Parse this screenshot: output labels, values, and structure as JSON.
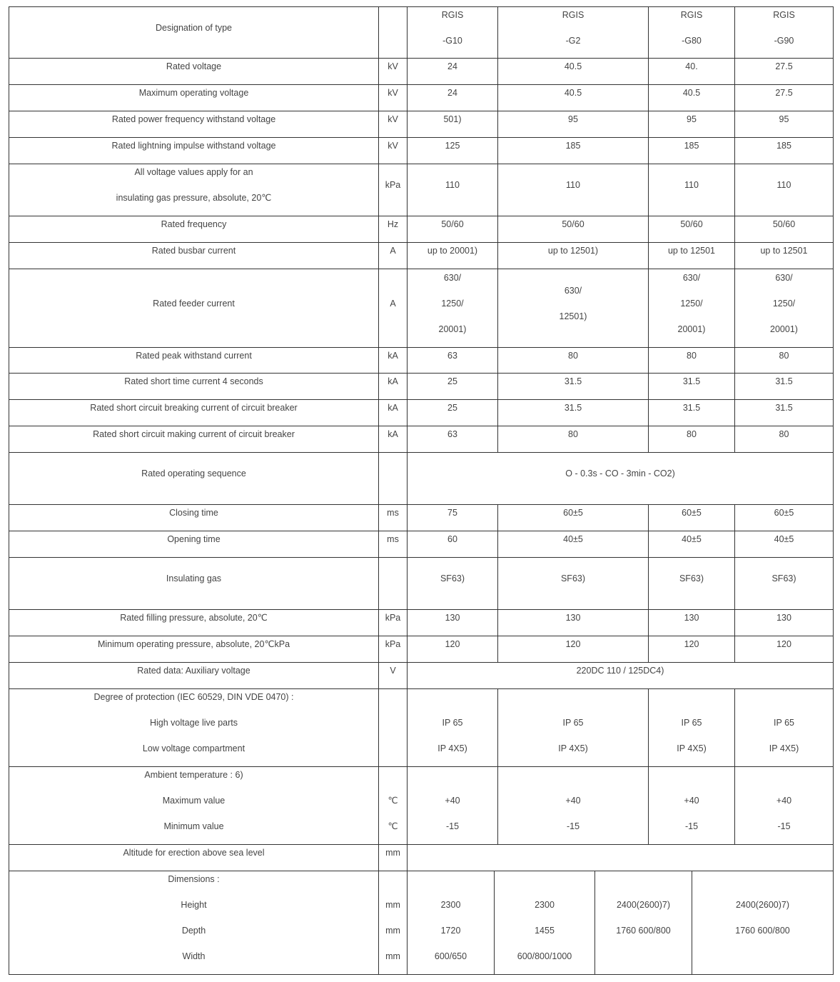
{
  "rows": [
    {
      "kind": "normal",
      "label": [
        "Designation of type"
      ],
      "unit": [
        ""
      ],
      "values": [
        [
          "RGIS",
          "-G10"
        ],
        [
          "RGIS",
          "-G2"
        ],
        [
          "RGIS",
          "-G80"
        ],
        [
          "RGIS",
          "-G90"
        ]
      ]
    },
    {
      "kind": "normal",
      "label": [
        "Rated voltage"
      ],
      "unit": [
        "kV"
      ],
      "values": [
        [
          "24"
        ],
        [
          "40.5"
        ],
        [
          "40."
        ],
        [
          "27.5"
        ]
      ]
    },
    {
      "kind": "normal",
      "label": [
        "Maximum operating voltage"
      ],
      "unit": [
        "kV"
      ],
      "values": [
        [
          "24"
        ],
        [
          "40.5"
        ],
        [
          "40.5"
        ],
        [
          "27.5"
        ]
      ]
    },
    {
      "kind": "normal",
      "label": [
        "Rated power frequency withstand voltage"
      ],
      "unit": [
        "kV"
      ],
      "values": [
        [
          "501)"
        ],
        [
          "95"
        ],
        [
          "95"
        ],
        [
          "95"
        ]
      ]
    },
    {
      "kind": "normal",
      "label": [
        "Rated lightning impulse withstand voltage"
      ],
      "unit": [
        "kV"
      ],
      "values": [
        [
          "125"
        ],
        [
          "185"
        ],
        [
          "185"
        ],
        [
          "185"
        ]
      ]
    },
    {
      "kind": "normal",
      "label": [
        "All voltage values apply for an",
        "insulating gas pressure, absolute, 20℃"
      ],
      "unit": [
        "kPa"
      ],
      "values": [
        [
          "110"
        ],
        [
          "110"
        ],
        [
          "110"
        ],
        [
          "110"
        ]
      ]
    },
    {
      "kind": "normal",
      "label": [
        "Rated frequency"
      ],
      "unit": [
        "Hz"
      ],
      "values": [
        [
          "50/60"
        ],
        [
          "50/60"
        ],
        [
          "50/60"
        ],
        [
          "50/60"
        ]
      ]
    },
    {
      "kind": "normal",
      "label": [
        "Rated busbar current"
      ],
      "unit": [
        "A"
      ],
      "values": [
        [
          "up to 20001)"
        ],
        [
          "up to 12501)"
        ],
        [
          "up to 12501"
        ],
        [
          "up to 12501"
        ]
      ]
    },
    {
      "kind": "normal",
      "label": [
        "Rated feeder current"
      ],
      "unit": [
        "A"
      ],
      "values": [
        [
          "630/",
          "1250/",
          "20001)"
        ],
        [
          "630/",
          "12501)"
        ],
        [
          "630/",
          "1250/",
          "20001)"
        ],
        [
          "630/",
          "1250/",
          "20001)"
        ]
      ]
    },
    {
      "kind": "normal",
      "label": [
        "Rated peak withstand current"
      ],
      "unit": [
        "kA"
      ],
      "values": [
        [
          "63"
        ],
        [
          "80"
        ],
        [
          "80"
        ],
        [
          "80"
        ]
      ]
    },
    {
      "kind": "normal",
      "label": [
        "Rated short time current 4 seconds"
      ],
      "unit": [
        "kA"
      ],
      "values": [
        [
          "25"
        ],
        [
          "31.5"
        ],
        [
          "31.5"
        ],
        [
          "31.5"
        ]
      ]
    },
    {
      "kind": "normal",
      "label": [
        "Rated short circuit breaking current of circuit breaker"
      ],
      "unit": [
        "kA"
      ],
      "values": [
        [
          "25"
        ],
        [
          "31.5"
        ],
        [
          "31.5"
        ],
        [
          "31.5"
        ]
      ]
    },
    {
      "kind": "normal",
      "label": [
        "Rated short circuit making current of circuit breaker"
      ],
      "unit": [
        "kA"
      ],
      "values": [
        [
          "63"
        ],
        [
          "80"
        ],
        [
          "80"
        ],
        [
          "80"
        ]
      ]
    },
    {
      "kind": "span",
      "label": [
        "Rated operating sequence"
      ],
      "unit": [
        ""
      ],
      "values": [
        [
          "O - 0.3s - CO - 3min - CO2)"
        ]
      ]
    },
    {
      "kind": "normal",
      "label": [
        "Closing time"
      ],
      "unit": [
        "ms"
      ],
      "values": [
        [
          "75"
        ],
        [
          "60±5"
        ],
        [
          "60±5"
        ],
        [
          "60±5"
        ]
      ]
    },
    {
      "kind": "normal",
      "label": [
        "Opening time"
      ],
      "unit": [
        "ms"
      ],
      "values": [
        [
          "60"
        ],
        [
          "40±5"
        ],
        [
          "40±5"
        ],
        [
          "40±5"
        ]
      ]
    },
    {
      "kind": "normal",
      "label": [
        "Insulating gas"
      ],
      "unit": [
        ""
      ],
      "values": [
        [
          "SF63)"
        ],
        [
          "SF63)"
        ],
        [
          "SF63)"
        ],
        [
          "SF63)"
        ]
      ]
    },
    {
      "kind": "normal",
      "label": [
        "Rated filling pressure, absolute, 20℃"
      ],
      "unit": [
        "kPa"
      ],
      "values": [
        [
          "130"
        ],
        [
          "130"
        ],
        [
          "130"
        ],
        [
          "130"
        ]
      ]
    },
    {
      "kind": "normal",
      "label": [
        "Minimum operating pressure, absolute, 20℃kPa"
      ],
      "unit": [
        "kPa"
      ],
      "values": [
        [
          "120"
        ],
        [
          "120"
        ],
        [
          "120"
        ],
        [
          "120"
        ]
      ]
    },
    {
      "kind": "span",
      "label": [
        "Rated data: Auxiliary voltage"
      ],
      "unit": [
        "V"
      ],
      "values": [
        [
          "220DC 110 / 125DC4)"
        ]
      ]
    },
    {
      "kind": "normal",
      "label": [
        "Degree of protection (IEC 60529, DIN VDE 0470) :",
        "High voltage live parts",
        "Low voltage compartment"
      ],
      "unit": [
        "",
        "",
        ""
      ],
      "values": [
        [
          "",
          "IP 65",
          "IP 4X5)"
        ],
        [
          "",
          "IP 65",
          "IP 4X5)"
        ],
        [
          "",
          "IP 65",
          "IP 4X5)"
        ],
        [
          "",
          "IP 65",
          "IP 4X5)"
        ]
      ]
    },
    {
      "kind": "normal",
      "label": [
        "Ambient temperature : 6)",
        "Maximum value",
        "Minimum value"
      ],
      "unit": [
        "",
        "℃",
        "℃"
      ],
      "values": [
        [
          "",
          "+40",
          "-15"
        ],
        [
          "",
          "+40",
          "-15"
        ],
        [
          "",
          "+40",
          "-15"
        ],
        [
          "",
          "+40",
          "-15"
        ]
      ]
    },
    {
      "kind": "span",
      "label": [
        "Altitude for erection above sea level"
      ],
      "unit": [
        "mm"
      ],
      "values": [
        [
          ""
        ]
      ]
    },
    {
      "kind": "dims",
      "label": [
        "Dimensions :",
        "Height",
        "Depth",
        "Width"
      ],
      "unit": [
        "",
        "mm",
        "mm",
        "mm"
      ],
      "values": [
        [
          "",
          "2300",
          "1720",
          "600/650"
        ],
        [
          "",
          "2300",
          "1455",
          "600/800/1000"
        ],
        [
          "2400(2600)7)",
          "1760 600/800"
        ],
        [
          "2400(2600)7)",
          "1760 600/800"
        ]
      ]
    }
  ]
}
